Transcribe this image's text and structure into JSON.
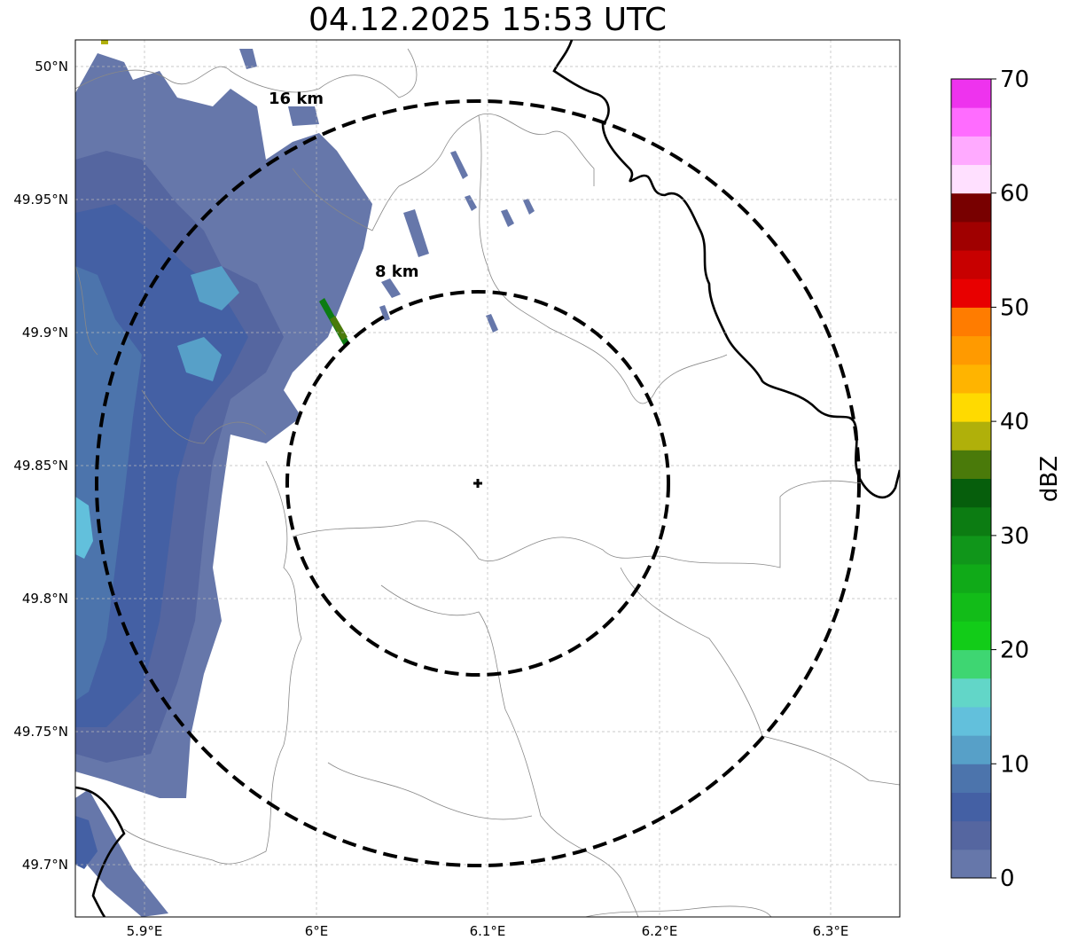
{
  "title": "04.12.2025 15:53 UTC",
  "map": {
    "lat_ticks": [
      "50°N",
      "49.95°N",
      "49.9°N",
      "49.85°N",
      "49.8°N",
      "49.75°N",
      "49.7°N"
    ],
    "lon_ticks": [
      "5.9°E",
      "6°E",
      "6.1°E",
      "6.2°E",
      "6.3°E"
    ],
    "lon_range": [
      5.86,
      6.34
    ],
    "lat_range": [
      49.68,
      50.01
    ],
    "radar_site": {
      "lon": 6.095,
      "lat": 49.843
    },
    "range_rings": [
      {
        "label": "8 km",
        "radius_km": 8
      },
      {
        "label": "16 km",
        "radius_km": 16
      }
    ]
  },
  "colorbar": {
    "label": "dBZ",
    "ticks": [
      "0",
      "10",
      "20",
      "30",
      "40",
      "50",
      "60",
      "70"
    ],
    "min": 0,
    "max": 70,
    "step": 2.5,
    "colors": [
      "#6677aa",
      "#5566a0",
      "#4460a4",
      "#4c74ac",
      "#57a0c8",
      "#62c0dc",
      "#62d6c8",
      "#3ed672",
      "#12cc18",
      "#12bc18",
      "#10aa18",
      "#10961a",
      "#0c7c12",
      "#065e0c",
      "#4a7a0a",
      "#b0b00a",
      "#ffda00",
      "#ffb400",
      "#ff9a00",
      "#ff7c00",
      "#e80000",
      "#c80000",
      "#a00000",
      "#780000",
      "#ffe0ff",
      "#ffaaff",
      "#ff6cff",
      "#ee33ee"
    ]
  }
}
